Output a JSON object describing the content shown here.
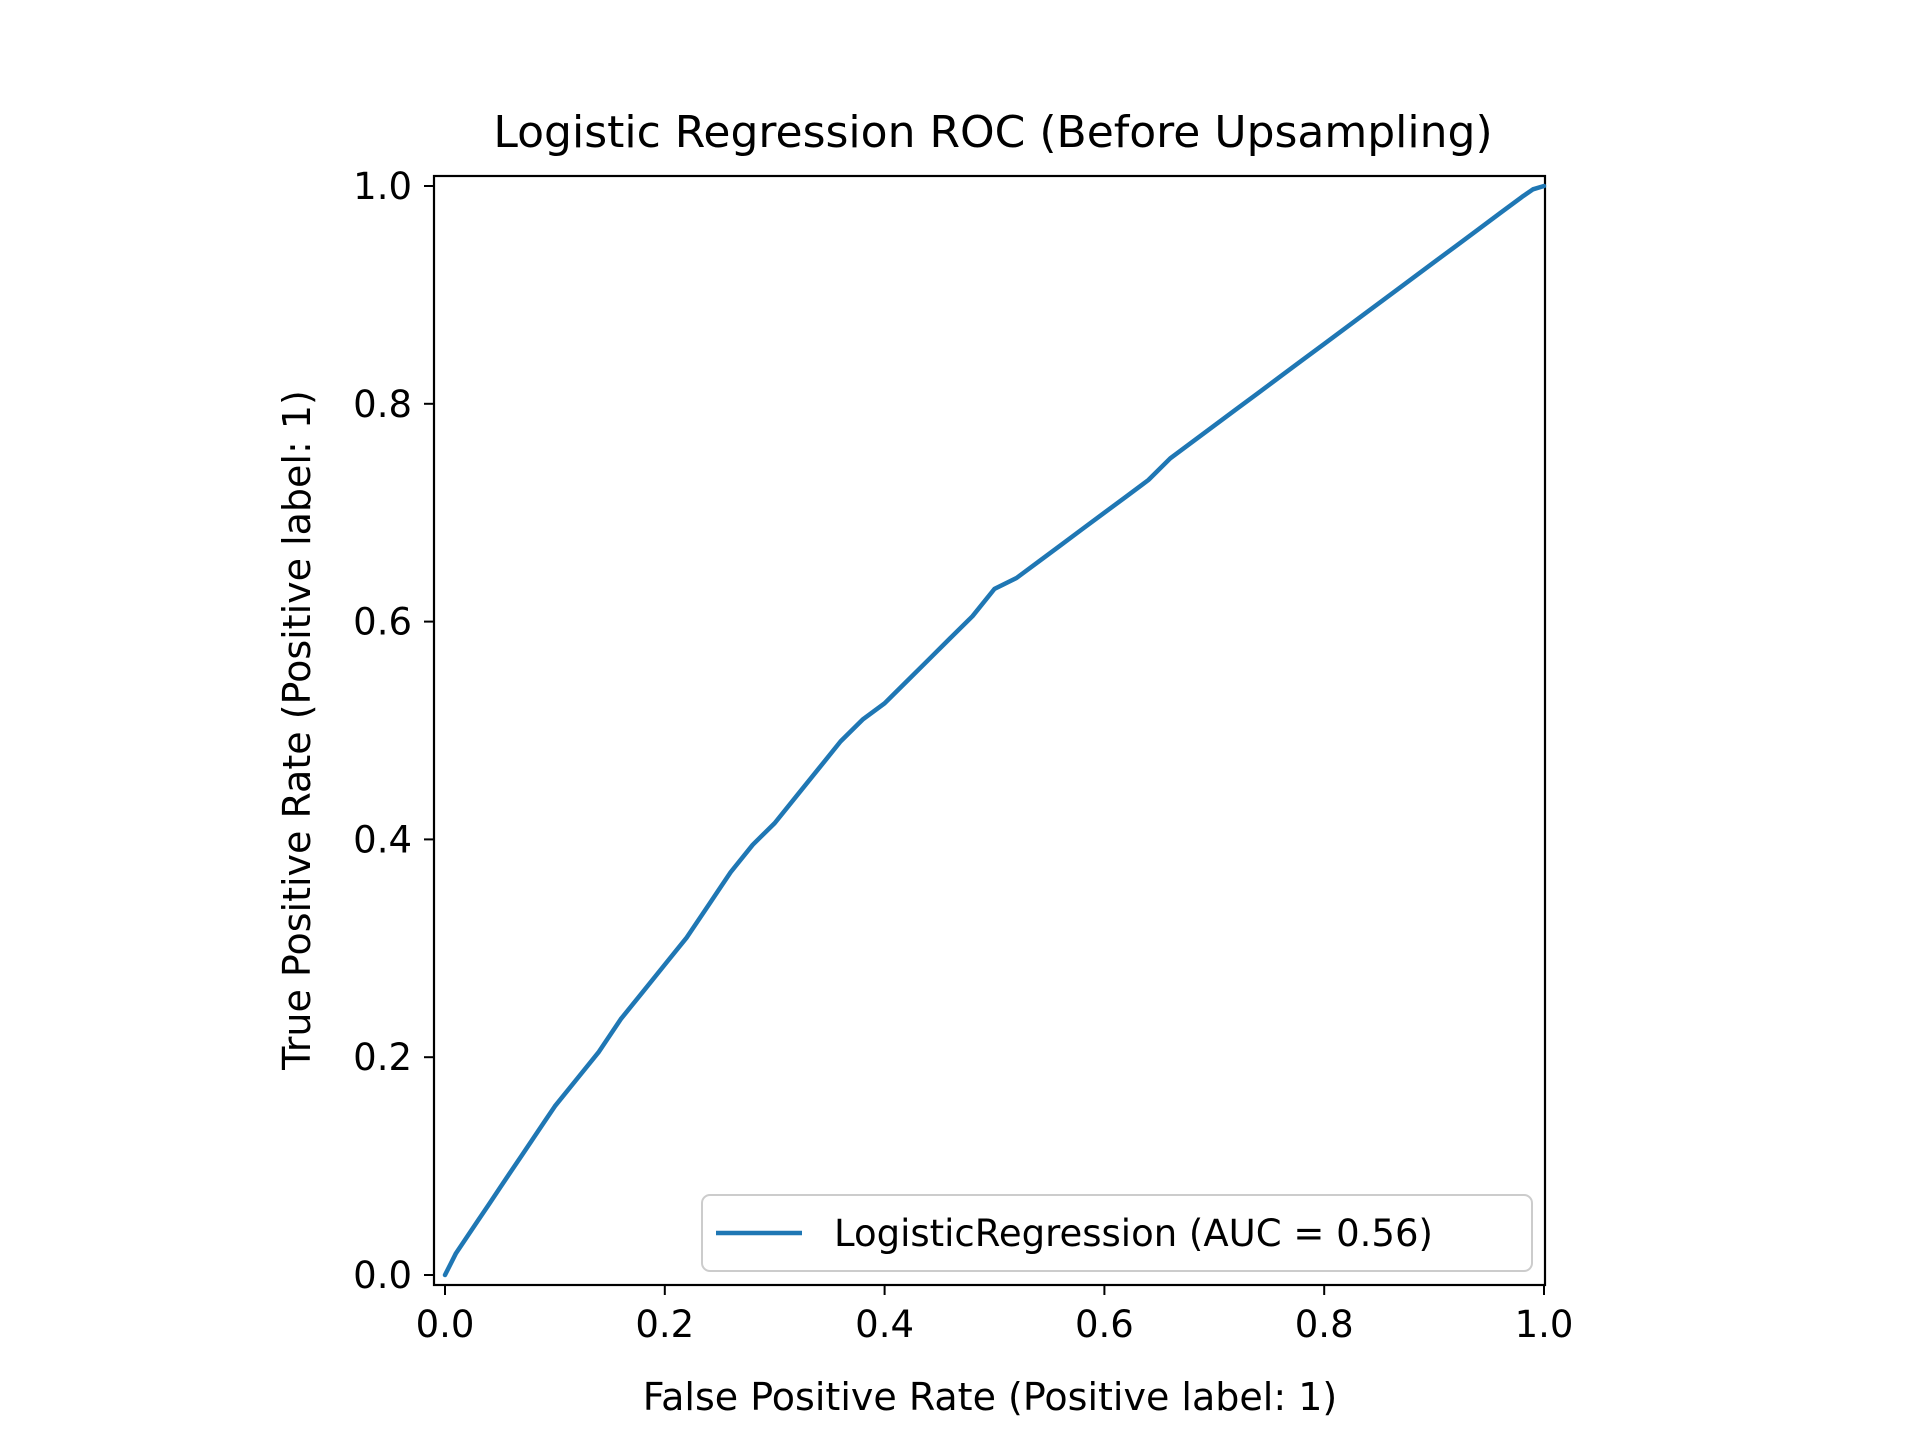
{
  "chart_data": {
    "type": "line",
    "title": "Logistic Regression ROC (Before Upsampling)",
    "xlabel": "False Positive Rate (Positive label: 1)",
    "ylabel": "True Positive Rate (Positive label: 1)",
    "xlim": [
      0.0,
      1.0
    ],
    "ylim": [
      0.0,
      1.0
    ],
    "grid": false,
    "legend_position": "lower-right",
    "x_ticks": [
      "0.0",
      "0.2",
      "0.4",
      "0.6",
      "0.8",
      "1.0"
    ],
    "y_ticks": [
      "0.0",
      "0.2",
      "0.4",
      "0.6",
      "0.8",
      "1.0"
    ],
    "series": [
      {
        "name": "LogisticRegression (AUC = 0.56)",
        "color": "#1f77b4",
        "x": [
          0.0,
          0.005,
          0.01,
          0.02,
          0.03,
          0.04,
          0.05,
          0.06,
          0.07,
          0.08,
          0.09,
          0.1,
          0.12,
          0.14,
          0.16,
          0.18,
          0.2,
          0.22,
          0.24,
          0.26,
          0.28,
          0.3,
          0.32,
          0.34,
          0.36,
          0.38,
          0.4,
          0.42,
          0.44,
          0.46,
          0.48,
          0.5,
          0.52,
          0.54,
          0.56,
          0.58,
          0.6,
          0.62,
          0.64,
          0.66,
          0.68,
          0.7,
          0.72,
          0.74,
          0.76,
          0.78,
          0.8,
          0.82,
          0.84,
          0.86,
          0.88,
          0.9,
          0.92,
          0.94,
          0.96,
          0.98,
          0.99,
          1.0
        ],
        "y": [
          0.0,
          0.01,
          0.02,
          0.035,
          0.05,
          0.065,
          0.08,
          0.095,
          0.11,
          0.125,
          0.14,
          0.155,
          0.18,
          0.205,
          0.235,
          0.26,
          0.285,
          0.31,
          0.34,
          0.37,
          0.395,
          0.415,
          0.44,
          0.465,
          0.49,
          0.51,
          0.525,
          0.545,
          0.565,
          0.585,
          0.605,
          0.63,
          0.64,
          0.655,
          0.67,
          0.685,
          0.7,
          0.715,
          0.73,
          0.75,
          0.765,
          0.78,
          0.795,
          0.81,
          0.825,
          0.84,
          0.855,
          0.87,
          0.885,
          0.9,
          0.915,
          0.93,
          0.945,
          0.96,
          0.975,
          0.99,
          0.997,
          1.0
        ]
      }
    ]
  }
}
